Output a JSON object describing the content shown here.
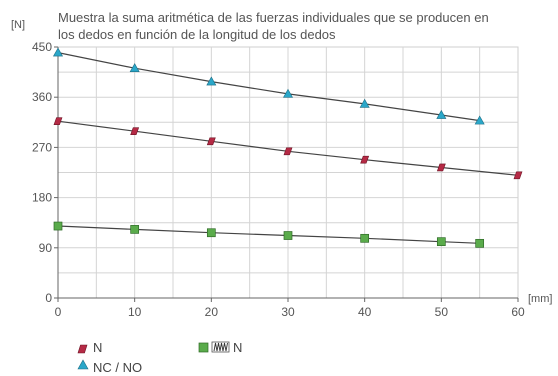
{
  "chart_data": {
    "type": "line",
    "title": "Muestra la suma aritmética de las fuerzas individuales que se producen en los dedos en función de la longitud de los dedos",
    "title_lines": [
      "Muestra la suma aritmética de las fuerzas individuales que se producen en",
      "los dedos en función de la longitud de los dedos"
    ],
    "ylabel": "[N]",
    "xlabel": "[mm]",
    "xlim": [
      0,
      60
    ],
    "ylim": [
      0,
      450
    ],
    "x_ticks": [
      0,
      10,
      20,
      30,
      40,
      50,
      60
    ],
    "y_ticks": [
      0,
      90,
      180,
      270,
      360,
      450
    ],
    "grid": true,
    "legend_position": "bottom",
    "series": [
      {
        "name": "NC / NO",
        "marker": "triangle",
        "color": "#2aa7c9",
        "x": [
          0,
          10,
          20,
          30,
          40,
          50,
          55
        ],
        "y": [
          440,
          412,
          388,
          366,
          348,
          328,
          318
        ]
      },
      {
        "name": "N",
        "marker": "diamond",
        "color": "#b52a45",
        "x": [
          0,
          10,
          20,
          30,
          40,
          50,
          60
        ],
        "y": [
          317,
          299,
          281,
          263,
          248,
          234,
          220
        ]
      },
      {
        "name": "N",
        "marker": "square",
        "color": "#5aab4b",
        "legend_has_spring_icon": true,
        "x": [
          0,
          10,
          20,
          30,
          40,
          50,
          55
        ],
        "y": [
          129,
          123,
          117,
          112,
          107,
          101,
          98
        ]
      }
    ]
  }
}
